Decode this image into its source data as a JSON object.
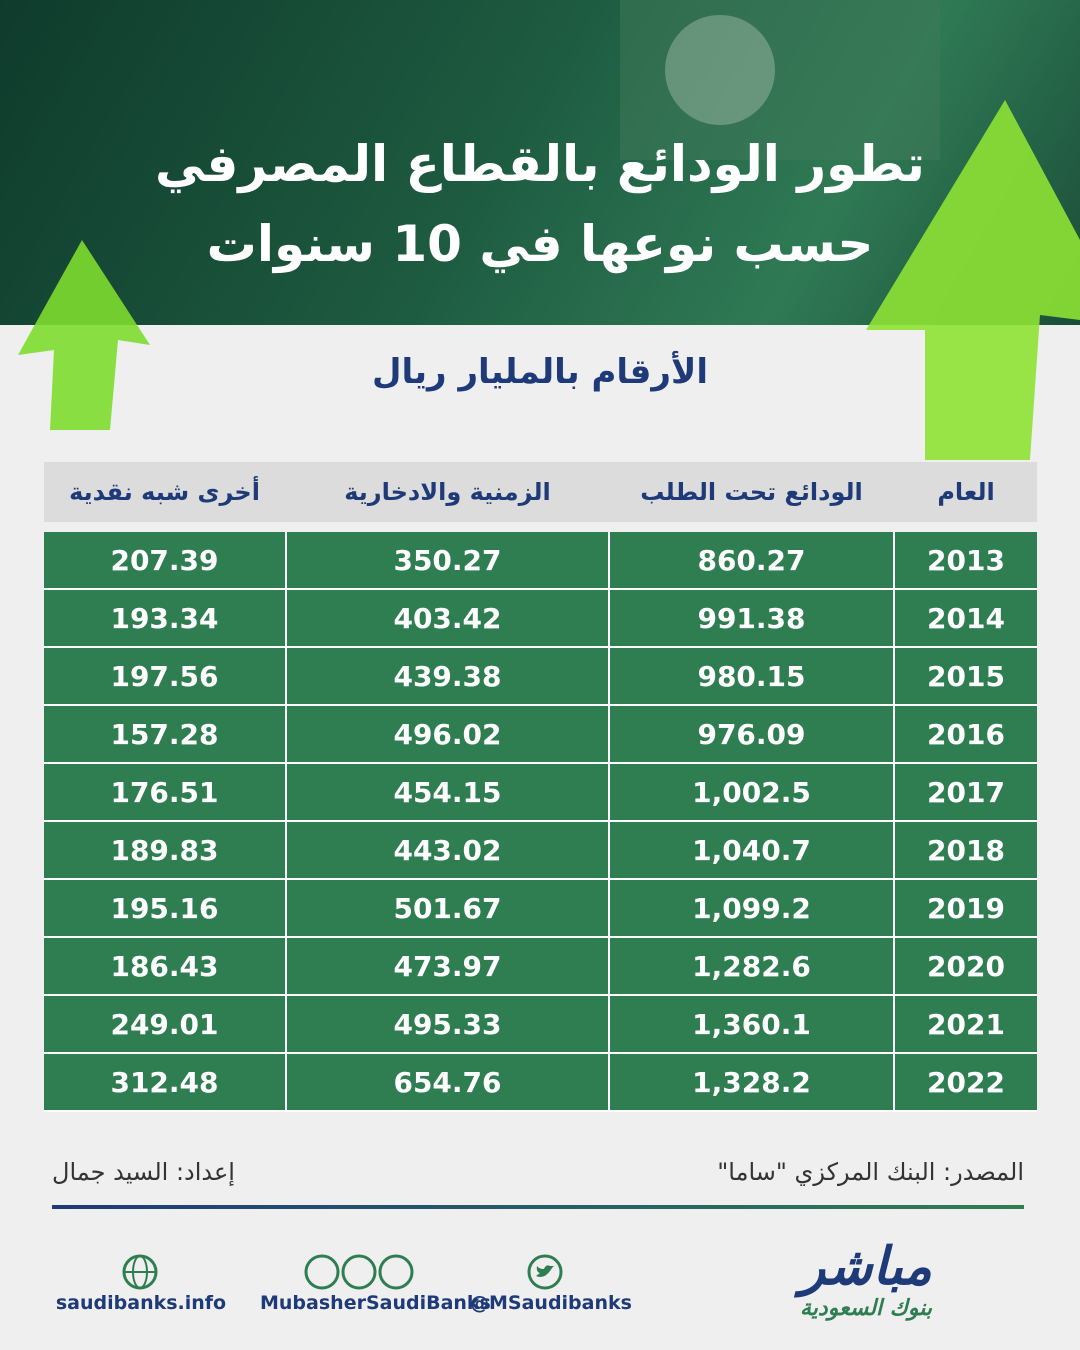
{
  "header": {
    "title": [
      "تطور الودائع بالقطاع المصرفي",
      "حسب نوعها في 10 سنوات"
    ],
    "subtitle": "الأرقام بالمليار ريال"
  },
  "table": {
    "columns": [
      "العام",
      "الودائع تحت الطلب",
      "الزمنية والادخارية",
      "أخرى شبه نقدية"
    ],
    "rows": [
      [
        "2013",
        "860.27",
        "350.27",
        "207.39"
      ],
      [
        "2014",
        "991.38",
        "403.42",
        "193.34"
      ],
      [
        "2015",
        "980.15",
        "439.38",
        "197.56"
      ],
      [
        "2016",
        "976.09",
        "496.02",
        "157.28"
      ],
      [
        "2017",
        "1,002.5",
        "454.15",
        "176.51"
      ],
      [
        "2018",
        "1,040.7",
        "443.02",
        "189.83"
      ],
      [
        "2019",
        "1,099.2",
        "501.67",
        "195.16"
      ],
      [
        "2020",
        "1,282.6",
        "473.97",
        "186.43"
      ],
      [
        "2021",
        "1,360.1",
        "495.33",
        "249.01"
      ],
      [
        "2022",
        "1,328.2",
        "654.76",
        "312.48"
      ]
    ]
  },
  "footer": {
    "source": "المصدر: البنك المركزي \"ساما\"",
    "author": "إعداد: السيد جمال",
    "links": [
      "saudibanks.info",
      "MubasherSaudiBanks",
      "@MSaudibanks"
    ],
    "logo": {
      "name": "مباشر",
      "tagline": "بنوك السعودية"
    }
  }
}
